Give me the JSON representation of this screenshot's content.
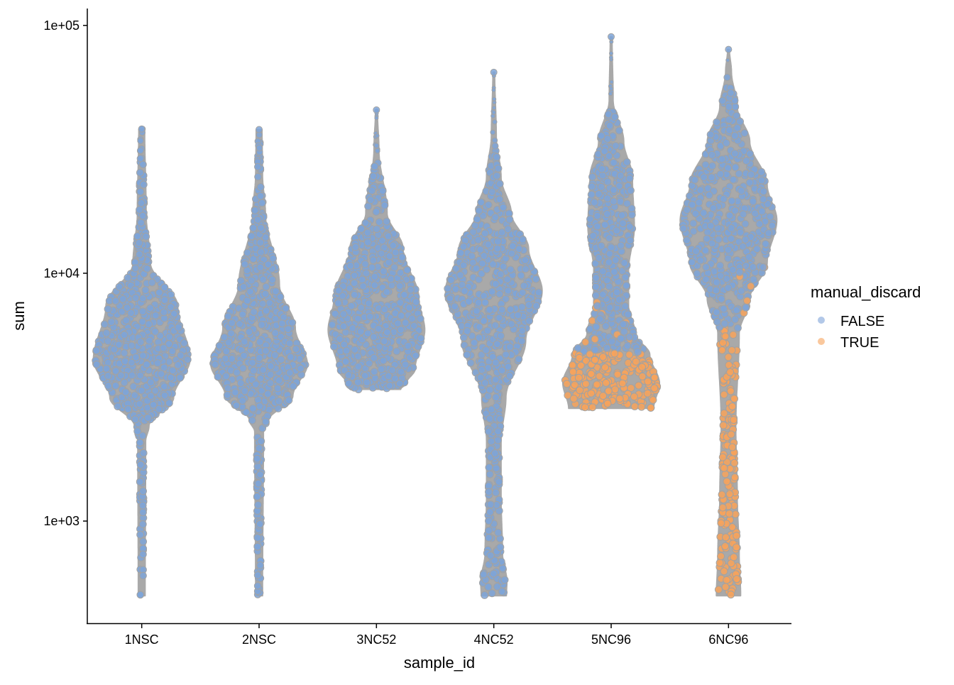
{
  "chart_data": {
    "type": "violin",
    "title": "",
    "xlabel": "sample_id",
    "ylabel": "sum",
    "yscale": "log10",
    "ylim": [
      387,
      117000
    ],
    "yticks": [
      {
        "value": 1000,
        "label": "1e+03"
      },
      {
        "value": 10000,
        "label": "1e+04"
      },
      {
        "value": 100000,
        "label": "1e+05"
      }
    ],
    "categories": [
      "1NSC",
      "2NSC",
      "3NC52",
      "4NC52",
      "5NC96",
      "6NC96"
    ],
    "legend": {
      "title": "manual_discard",
      "placement": "right",
      "entries": [
        {
          "label": "FALSE",
          "color": "#7ea4d8"
        },
        {
          "label": "TRUE",
          "color": "#f7a35c"
        }
      ]
    },
    "colors": {
      "violin_fill": "#a9a9a9",
      "violin_stroke": "#a9a9a9",
      "point_stroke": "#a2a2a2"
    },
    "violins": [
      {
        "sample": "1NSC",
        "discard_below": 0,
        "profile": [
          [
            500,
            0.07
          ],
          [
            2100,
            0.08
          ],
          [
            2420,
            0.15
          ],
          [
            3150,
            0.66
          ],
          [
            4500,
            1.0
          ],
          [
            7400,
            0.74
          ],
          [
            11000,
            0.18
          ],
          [
            17500,
            0.09
          ],
          [
            38200,
            0.06
          ]
        ]
      },
      {
        "sample": "2NSC",
        "discard_below": 0,
        "profile": [
          [
            500,
            0.07
          ],
          [
            2300,
            0.09
          ],
          [
            2550,
            0.2
          ],
          [
            3200,
            0.7
          ],
          [
            4300,
            1.0
          ],
          [
            6000,
            0.75
          ],
          [
            9000,
            0.42
          ],
          [
            17500,
            0.13
          ],
          [
            25000,
            0.07
          ],
          [
            38000,
            0.06
          ]
        ]
      },
      {
        "sample": "3NC52",
        "discard_below": 0,
        "profile": [
          [
            3400,
            0.5
          ],
          [
            3600,
            0.62
          ],
          [
            4100,
            0.8
          ],
          [
            5900,
            1.0
          ],
          [
            7900,
            0.88
          ],
          [
            12600,
            0.55
          ],
          [
            17500,
            0.22
          ],
          [
            31700,
            0.05
          ],
          [
            45600,
            0.01
          ]
        ]
      },
      {
        "sample": "4NC52",
        "discard_below": 0,
        "profile": [
          [
            500,
            0.26
          ],
          [
            570,
            0.27
          ],
          [
            740,
            0.18
          ],
          [
            1250,
            0.15
          ],
          [
            2100,
            0.15
          ],
          [
            3150,
            0.25
          ],
          [
            5340,
            0.66
          ],
          [
            8500,
            1.0
          ],
          [
            12600,
            0.72
          ],
          [
            17500,
            0.36
          ],
          [
            24400,
            0.15
          ],
          [
            36000,
            0.05
          ],
          [
            64700,
            0.01
          ]
        ]
      },
      {
        "sample": "5NC96",
        "discard_below": 4800,
        "profile": [
          [
            2850,
            0.88
          ],
          [
            3600,
            1.0
          ],
          [
            4700,
            0.8
          ],
          [
            5700,
            0.5
          ],
          [
            7400,
            0.36
          ],
          [
            10300,
            0.36
          ],
          [
            15350,
            0.48
          ],
          [
            24400,
            0.44
          ],
          [
            34000,
            0.26
          ],
          [
            50000,
            0.04
          ],
          [
            90000,
            0.01
          ]
        ]
      },
      {
        "sample": "6NC96",
        "discard_below": 6000,
        "profile": [
          [
            500,
            0.25
          ],
          [
            740,
            0.22
          ],
          [
            1250,
            0.18
          ],
          [
            2420,
            0.15
          ],
          [
            5700,
            0.22
          ],
          [
            7900,
            0.44
          ],
          [
            11000,
            0.8
          ],
          [
            16400,
            1.0
          ],
          [
            22800,
            0.8
          ],
          [
            34000,
            0.44
          ],
          [
            47000,
            0.18
          ],
          [
            65000,
            0.06
          ],
          [
            80000,
            0.01
          ]
        ]
      }
    ]
  }
}
